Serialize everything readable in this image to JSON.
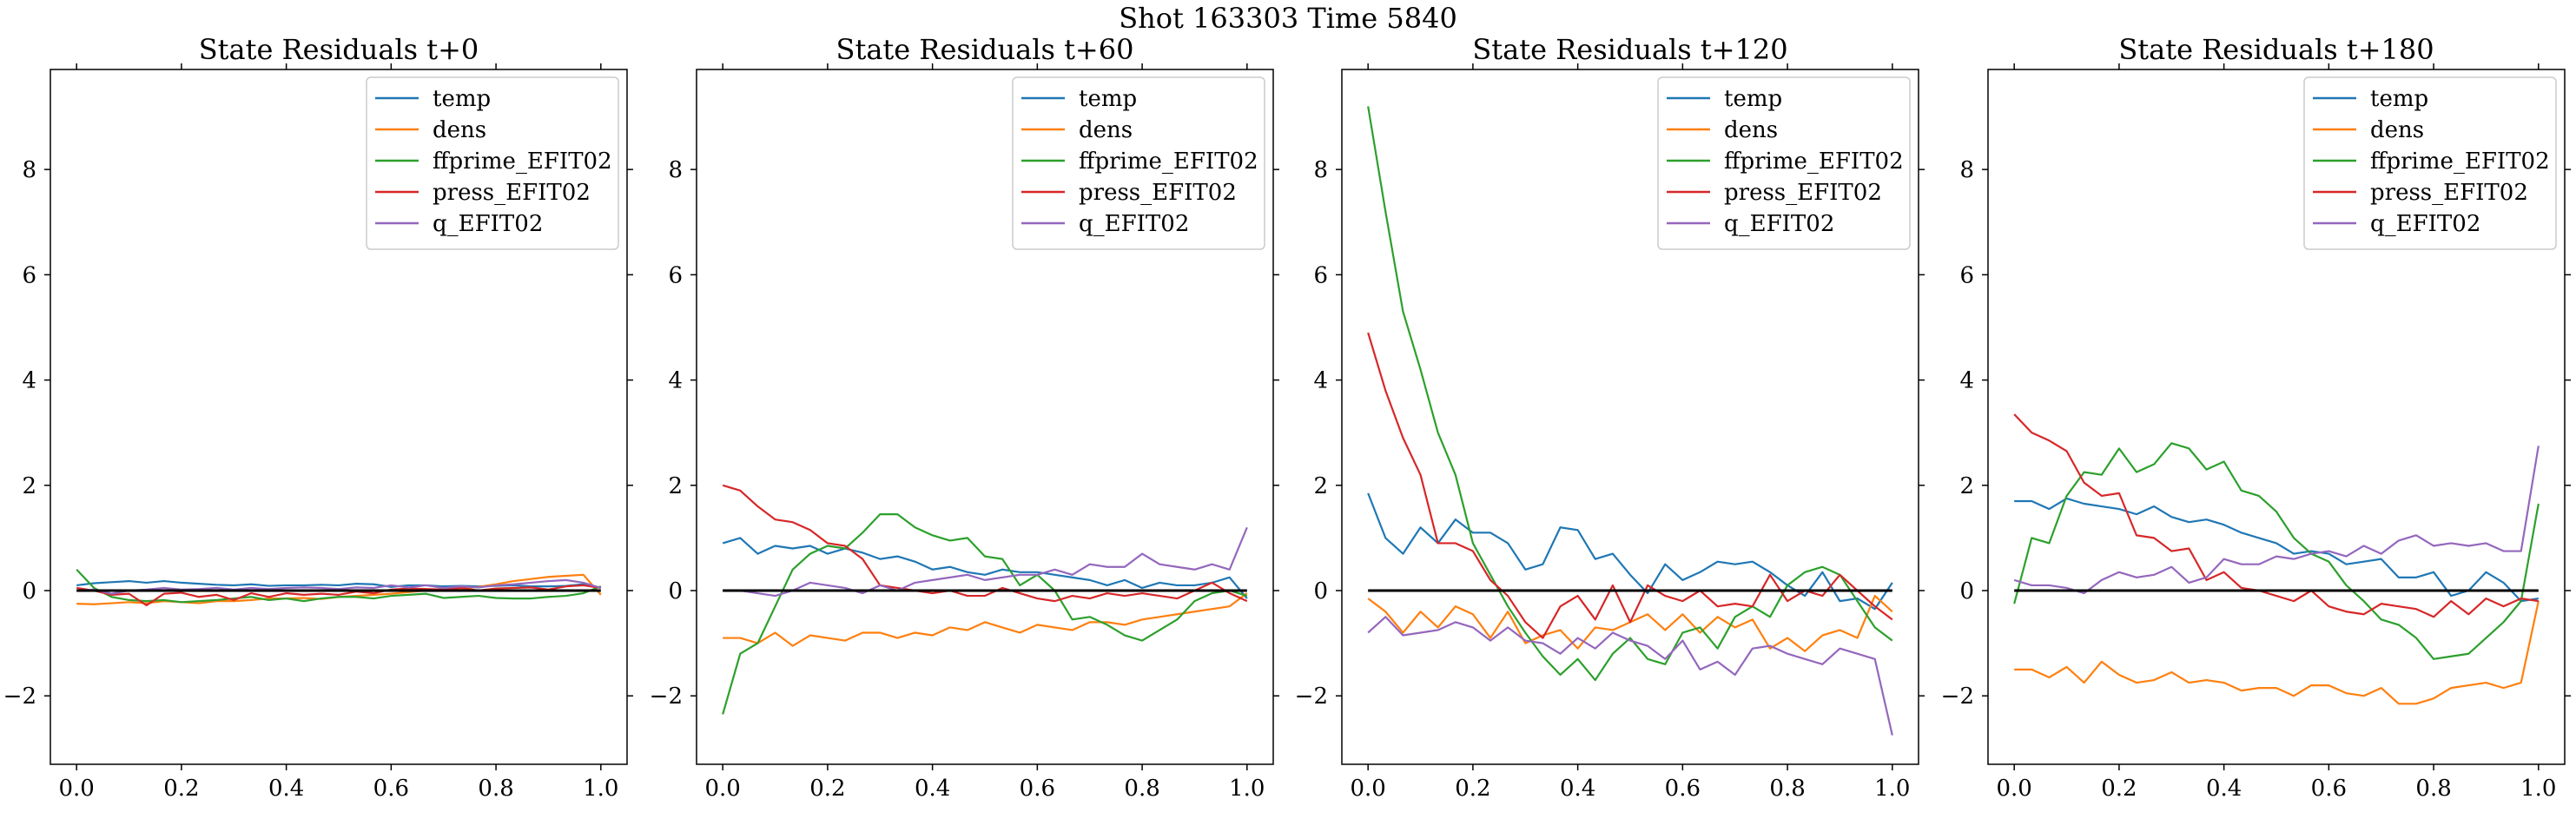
{
  "suptitle": "Shot 163303   Time 5840",
  "colors": {
    "temp": "#1f77b4",
    "dens": "#ff7f0e",
    "ffprime_EFIT02": "#2ca02c",
    "press_EFIT02": "#d62728",
    "q_EFIT02": "#9467bd",
    "zero_line": "#000000"
  },
  "chart_data": [
    {
      "type": "line",
      "title": "State Residuals t+0",
      "xlim": [
        -0.05,
        1.05
      ],
      "ylim": [
        -3.3,
        9.9
      ],
      "xticks": [
        0.0,
        0.2,
        0.4,
        0.6,
        0.8,
        1.0
      ],
      "xtick_labels": [
        "0.0",
        "0.2",
        "0.4",
        "0.6",
        "0.8",
        "1.0"
      ],
      "yticks": [
        -2,
        0,
        2,
        4,
        6,
        8
      ],
      "ytick_labels": [
        "−2",
        "0",
        "2",
        "4",
        "6",
        "8"
      ],
      "legend_position": "top-right",
      "hline": 0,
      "x": [
        0.0,
        0.0333,
        0.0667,
        0.1,
        0.1333,
        0.1667,
        0.2,
        0.2333,
        0.2667,
        0.3,
        0.3333,
        0.3667,
        0.4,
        0.4333,
        0.4667,
        0.5,
        0.5333,
        0.5667,
        0.6,
        0.6333,
        0.6667,
        0.7,
        0.7333,
        0.7667,
        0.8,
        0.8333,
        0.8667,
        0.9,
        0.9333,
        0.9667,
        1.0
      ],
      "series": [
        {
          "name": "temp",
          "values": [
            0.1,
            0.14,
            0.16,
            0.18,
            0.15,
            0.18,
            0.15,
            0.13,
            0.11,
            0.1,
            0.12,
            0.09,
            0.1,
            0.1,
            0.11,
            0.1,
            0.13,
            0.12,
            0.07,
            0.1,
            0.1,
            0.08,
            0.09,
            0.08,
            0.09,
            0.1,
            0.08,
            0.08,
            0.09,
            0.12,
            0.05
          ]
        },
        {
          "name": "dens",
          "values": [
            -0.25,
            -0.26,
            -0.24,
            -0.22,
            -0.24,
            -0.2,
            -0.22,
            -0.24,
            -0.2,
            -0.2,
            -0.18,
            -0.15,
            -0.15,
            -0.14,
            -0.16,
            -0.12,
            -0.1,
            -0.08,
            -0.06,
            -0.03,
            0.0,
            0.02,
            0.04,
            0.07,
            0.12,
            0.18,
            0.22,
            0.26,
            0.28,
            0.3,
            -0.08
          ]
        },
        {
          "name": "ffprime_EFIT02",
          "values": [
            0.4,
            0.05,
            -0.12,
            -0.18,
            -0.2,
            -0.18,
            -0.22,
            -0.2,
            -0.18,
            -0.15,
            -0.12,
            -0.18,
            -0.15,
            -0.2,
            -0.15,
            -0.12,
            -0.12,
            -0.15,
            -0.1,
            -0.08,
            -0.06,
            -0.14,
            -0.12,
            -0.1,
            -0.14,
            -0.15,
            -0.15,
            -0.12,
            -0.1,
            -0.05,
            0.08
          ]
        },
        {
          "name": "press_EFIT02",
          "values": [
            0.05,
            0.0,
            -0.08,
            -0.06,
            -0.28,
            -0.06,
            -0.04,
            -0.12,
            -0.08,
            -0.18,
            -0.05,
            -0.12,
            -0.05,
            -0.08,
            -0.06,
            -0.08,
            -0.02,
            -0.05,
            0.02,
            0.04,
            0.03,
            0.02,
            0.05,
            0.0,
            0.04,
            0.05,
            0.06,
            0.02,
            0.08,
            0.1,
            0.05
          ]
        },
        {
          "name": "q_EFIT02",
          "values": [
            0.0,
            0.02,
            -0.06,
            0.0,
            0.02,
            0.05,
            0.02,
            0.03,
            0.05,
            0.02,
            0.05,
            0.03,
            0.05,
            0.06,
            0.05,
            0.03,
            0.06,
            0.05,
            0.1,
            0.06,
            0.1,
            0.05,
            0.08,
            0.06,
            0.1,
            0.12,
            0.15,
            0.18,
            0.2,
            0.15,
            0.05
          ]
        }
      ]
    },
    {
      "type": "line",
      "title": "State Residuals t+60",
      "xlim": [
        -0.05,
        1.05
      ],
      "ylim": [
        -3.3,
        9.9
      ],
      "xticks": [
        0.0,
        0.2,
        0.4,
        0.6,
        0.8,
        1.0
      ],
      "xtick_labels": [
        "0.0",
        "0.2",
        "0.4",
        "0.6",
        "0.8",
        "1.0"
      ],
      "yticks": [
        -2,
        0,
        2,
        4,
        6,
        8
      ],
      "ytick_labels": [
        "−2",
        "0",
        "2",
        "4",
        "6",
        "8"
      ],
      "legend_position": "top-right",
      "hline": 0,
      "x": [
        0.0,
        0.0333,
        0.0667,
        0.1,
        0.1333,
        0.1667,
        0.2,
        0.2333,
        0.2667,
        0.3,
        0.3333,
        0.3667,
        0.4,
        0.4333,
        0.4667,
        0.5,
        0.5333,
        0.5667,
        0.6,
        0.6333,
        0.6667,
        0.7,
        0.7333,
        0.7667,
        0.8,
        0.8333,
        0.8667,
        0.9,
        0.9333,
        0.9667,
        1.0
      ],
      "series": [
        {
          "name": "temp",
          "values": [
            0.9,
            1.0,
            0.7,
            0.85,
            0.8,
            0.85,
            0.7,
            0.8,
            0.72,
            0.6,
            0.65,
            0.55,
            0.4,
            0.45,
            0.35,
            0.3,
            0.4,
            0.35,
            0.35,
            0.3,
            0.25,
            0.2,
            0.1,
            0.2,
            0.05,
            0.15,
            0.1,
            0.1,
            0.15,
            0.25,
            -0.15
          ]
        },
        {
          "name": "dens",
          "values": [
            -0.9,
            -0.9,
            -1.0,
            -0.8,
            -1.05,
            -0.85,
            -0.9,
            -0.95,
            -0.8,
            -0.8,
            -0.9,
            -0.8,
            -0.85,
            -0.7,
            -0.75,
            -0.6,
            -0.7,
            -0.8,
            -0.65,
            -0.7,
            -0.75,
            -0.6,
            -0.6,
            -0.65,
            -0.55,
            -0.5,
            -0.45,
            -0.4,
            -0.35,
            -0.3,
            -0.05
          ]
        },
        {
          "name": "ffprime_EFIT02",
          "values": [
            -2.35,
            -1.2,
            -1.0,
            -0.3,
            0.4,
            0.7,
            0.85,
            0.8,
            1.1,
            1.45,
            1.45,
            1.2,
            1.05,
            0.95,
            1.0,
            0.65,
            0.6,
            0.1,
            0.3,
            0.0,
            -0.55,
            -0.5,
            -0.65,
            -0.85,
            -0.95,
            -0.75,
            -0.55,
            -0.2,
            -0.05,
            0.0,
            -0.1
          ]
        },
        {
          "name": "press_EFIT02",
          "values": [
            2.0,
            1.9,
            1.6,
            1.35,
            1.3,
            1.15,
            0.9,
            0.85,
            0.6,
            0.1,
            0.05,
            0.0,
            -0.05,
            0.0,
            -0.1,
            -0.1,
            0.05,
            -0.05,
            -0.15,
            -0.2,
            -0.1,
            -0.15,
            -0.05,
            -0.1,
            -0.05,
            -0.1,
            -0.15,
            0.0,
            0.15,
            -0.05,
            -0.2
          ]
        },
        {
          "name": "q_EFIT02",
          "values": [
            0.0,
            0.0,
            -0.05,
            -0.1,
            0.0,
            0.15,
            0.1,
            0.05,
            -0.05,
            0.1,
            0.0,
            0.15,
            0.2,
            0.25,
            0.3,
            0.2,
            0.25,
            0.3,
            0.3,
            0.4,
            0.3,
            0.5,
            0.45,
            0.45,
            0.7,
            0.5,
            0.45,
            0.4,
            0.5,
            0.4,
            1.2
          ]
        }
      ]
    },
    {
      "type": "line",
      "title": "State Residuals t+120",
      "xlim": [
        -0.05,
        1.05
      ],
      "ylim": [
        -3.3,
        9.9
      ],
      "xticks": [
        0.0,
        0.2,
        0.4,
        0.6,
        0.8,
        1.0
      ],
      "xtick_labels": [
        "0.0",
        "0.2",
        "0.4",
        "0.6",
        "0.8",
        "1.0"
      ],
      "yticks": [
        -2,
        0,
        2,
        4,
        6,
        8
      ],
      "ytick_labels": [
        "−2",
        "0",
        "2",
        "4",
        "6",
        "8"
      ],
      "legend_position": "top-right",
      "hline": 0,
      "x": [
        0.0,
        0.0333,
        0.0667,
        0.1,
        0.1333,
        0.1667,
        0.2,
        0.2333,
        0.2667,
        0.3,
        0.3333,
        0.3667,
        0.4,
        0.4333,
        0.4667,
        0.5,
        0.5333,
        0.5667,
        0.6,
        0.6333,
        0.6667,
        0.7,
        0.7333,
        0.7667,
        0.8,
        0.8333,
        0.8667,
        0.9,
        0.9333,
        0.9667,
        1.0
      ],
      "series": [
        {
          "name": "temp",
          "values": [
            1.85,
            1.0,
            0.7,
            1.2,
            0.9,
            1.35,
            1.1,
            1.1,
            0.9,
            0.4,
            0.5,
            1.2,
            1.15,
            0.6,
            0.7,
            0.3,
            -0.05,
            0.5,
            0.2,
            0.35,
            0.55,
            0.5,
            0.55,
            0.35,
            0.1,
            -0.1,
            0.35,
            -0.2,
            -0.15,
            -0.35,
            0.15
          ]
        },
        {
          "name": "dens",
          "values": [
            -0.15,
            -0.4,
            -0.8,
            -0.4,
            -0.7,
            -0.3,
            -0.45,
            -0.9,
            -0.4,
            -1.0,
            -0.85,
            -0.75,
            -1.1,
            -0.7,
            -0.75,
            -0.6,
            -0.45,
            -0.75,
            -0.45,
            -0.8,
            -0.5,
            -0.7,
            -0.55,
            -1.1,
            -0.9,
            -1.15,
            -0.85,
            -0.75,
            -0.9,
            -0.1,
            -0.4
          ]
        },
        {
          "name": "ffprime_EFIT02",
          "values": [
            9.2,
            7.2,
            5.3,
            4.2,
            3.0,
            2.2,
            0.9,
            0.3,
            -0.3,
            -0.8,
            -1.25,
            -1.6,
            -1.3,
            -1.7,
            -1.2,
            -0.9,
            -1.3,
            -1.4,
            -0.8,
            -0.7,
            -1.1,
            -0.5,
            -0.3,
            -0.5,
            0.1,
            0.35,
            0.45,
            0.3,
            -0.2,
            -0.7,
            -0.95
          ]
        },
        {
          "name": "press_EFIT02",
          "values": [
            4.9,
            3.8,
            2.9,
            2.2,
            0.9,
            0.9,
            0.75,
            0.2,
            -0.1,
            -0.6,
            -0.9,
            -0.3,
            -0.1,
            -0.55,
            0.1,
            -0.6,
            0.1,
            -0.1,
            -0.2,
            0.0,
            -0.3,
            -0.25,
            -0.3,
            0.3,
            -0.2,
            0.0,
            -0.1,
            0.3,
            0.0,
            -0.3,
            -0.55
          ]
        },
        {
          "name": "q_EFIT02",
          "values": [
            -0.8,
            -0.5,
            -0.85,
            -0.8,
            -0.75,
            -0.6,
            -0.7,
            -0.95,
            -0.7,
            -0.95,
            -1.0,
            -1.2,
            -0.9,
            -1.1,
            -0.8,
            -0.95,
            -1.05,
            -1.3,
            -0.95,
            -1.5,
            -1.35,
            -1.6,
            -1.1,
            -1.05,
            -1.2,
            -1.3,
            -1.4,
            -1.1,
            -1.2,
            -1.3,
            -2.75
          ]
        }
      ]
    },
    {
      "type": "line",
      "title": "State Residuals t+180",
      "xlim": [
        -0.05,
        1.05
      ],
      "ylim": [
        -3.3,
        9.9
      ],
      "xticks": [
        0.0,
        0.2,
        0.4,
        0.6,
        0.8,
        1.0
      ],
      "xtick_labels": [
        "0.0",
        "0.2",
        "0.4",
        "0.6",
        "0.8",
        "1.0"
      ],
      "yticks": [
        -2,
        0,
        2,
        4,
        6,
        8
      ],
      "ytick_labels": [
        "−2",
        "0",
        "2",
        "4",
        "6",
        "8"
      ],
      "legend_position": "top-right",
      "hline": 0,
      "x": [
        0.0,
        0.0333,
        0.0667,
        0.1,
        0.1333,
        0.1667,
        0.2,
        0.2333,
        0.2667,
        0.3,
        0.3333,
        0.3667,
        0.4,
        0.4333,
        0.4667,
        0.5,
        0.5333,
        0.5667,
        0.6,
        0.6333,
        0.6667,
        0.7,
        0.7333,
        0.7667,
        0.8,
        0.8333,
        0.8667,
        0.9,
        0.9333,
        0.9667,
        1.0
      ],
      "series": [
        {
          "name": "temp",
          "values": [
            1.7,
            1.7,
            1.55,
            1.75,
            1.65,
            1.6,
            1.55,
            1.45,
            1.6,
            1.4,
            1.3,
            1.35,
            1.25,
            1.1,
            1.0,
            0.9,
            0.7,
            0.75,
            0.7,
            0.5,
            0.55,
            0.6,
            0.25,
            0.25,
            0.35,
            -0.1,
            0.0,
            0.35,
            0.15,
            -0.2,
            -0.15
          ]
        },
        {
          "name": "dens",
          "values": [
            -1.5,
            -1.5,
            -1.65,
            -1.45,
            -1.75,
            -1.35,
            -1.6,
            -1.75,
            -1.7,
            -1.55,
            -1.75,
            -1.7,
            -1.75,
            -1.9,
            -1.85,
            -1.85,
            -2.0,
            -1.8,
            -1.8,
            -1.95,
            -2.0,
            -1.85,
            -2.15,
            -2.15,
            -2.05,
            -1.85,
            -1.8,
            -1.75,
            -1.85,
            -1.75,
            -0.2
          ]
        },
        {
          "name": "ffprime_EFIT02",
          "values": [
            -0.25,
            1.0,
            0.9,
            1.8,
            2.25,
            2.2,
            2.7,
            2.25,
            2.4,
            2.8,
            2.7,
            2.3,
            2.45,
            1.9,
            1.8,
            1.5,
            1.0,
            0.7,
            0.55,
            0.1,
            -0.2,
            -0.55,
            -0.65,
            -0.9,
            -1.3,
            -1.25,
            -1.2,
            -0.9,
            -0.6,
            -0.2,
            1.65
          ]
        },
        {
          "name": "press_EFIT02",
          "values": [
            3.35,
            3.0,
            2.85,
            2.65,
            2.05,
            1.8,
            1.85,
            1.05,
            1.0,
            0.75,
            0.8,
            0.2,
            0.35,
            0.05,
            0.0,
            -0.1,
            -0.2,
            0.0,
            -0.3,
            -0.4,
            -0.45,
            -0.25,
            -0.3,
            -0.35,
            -0.5,
            -0.2,
            -0.45,
            -0.15,
            -0.3,
            -0.15,
            -0.2
          ]
        },
        {
          "name": "q_EFIT02",
          "values": [
            0.2,
            0.1,
            0.1,
            0.05,
            -0.05,
            0.2,
            0.35,
            0.25,
            0.3,
            0.45,
            0.15,
            0.25,
            0.6,
            0.5,
            0.5,
            0.65,
            0.6,
            0.7,
            0.75,
            0.65,
            0.85,
            0.7,
            0.95,
            1.05,
            0.85,
            0.9,
            0.85,
            0.9,
            0.75,
            0.75,
            2.75
          ]
        }
      ]
    }
  ]
}
